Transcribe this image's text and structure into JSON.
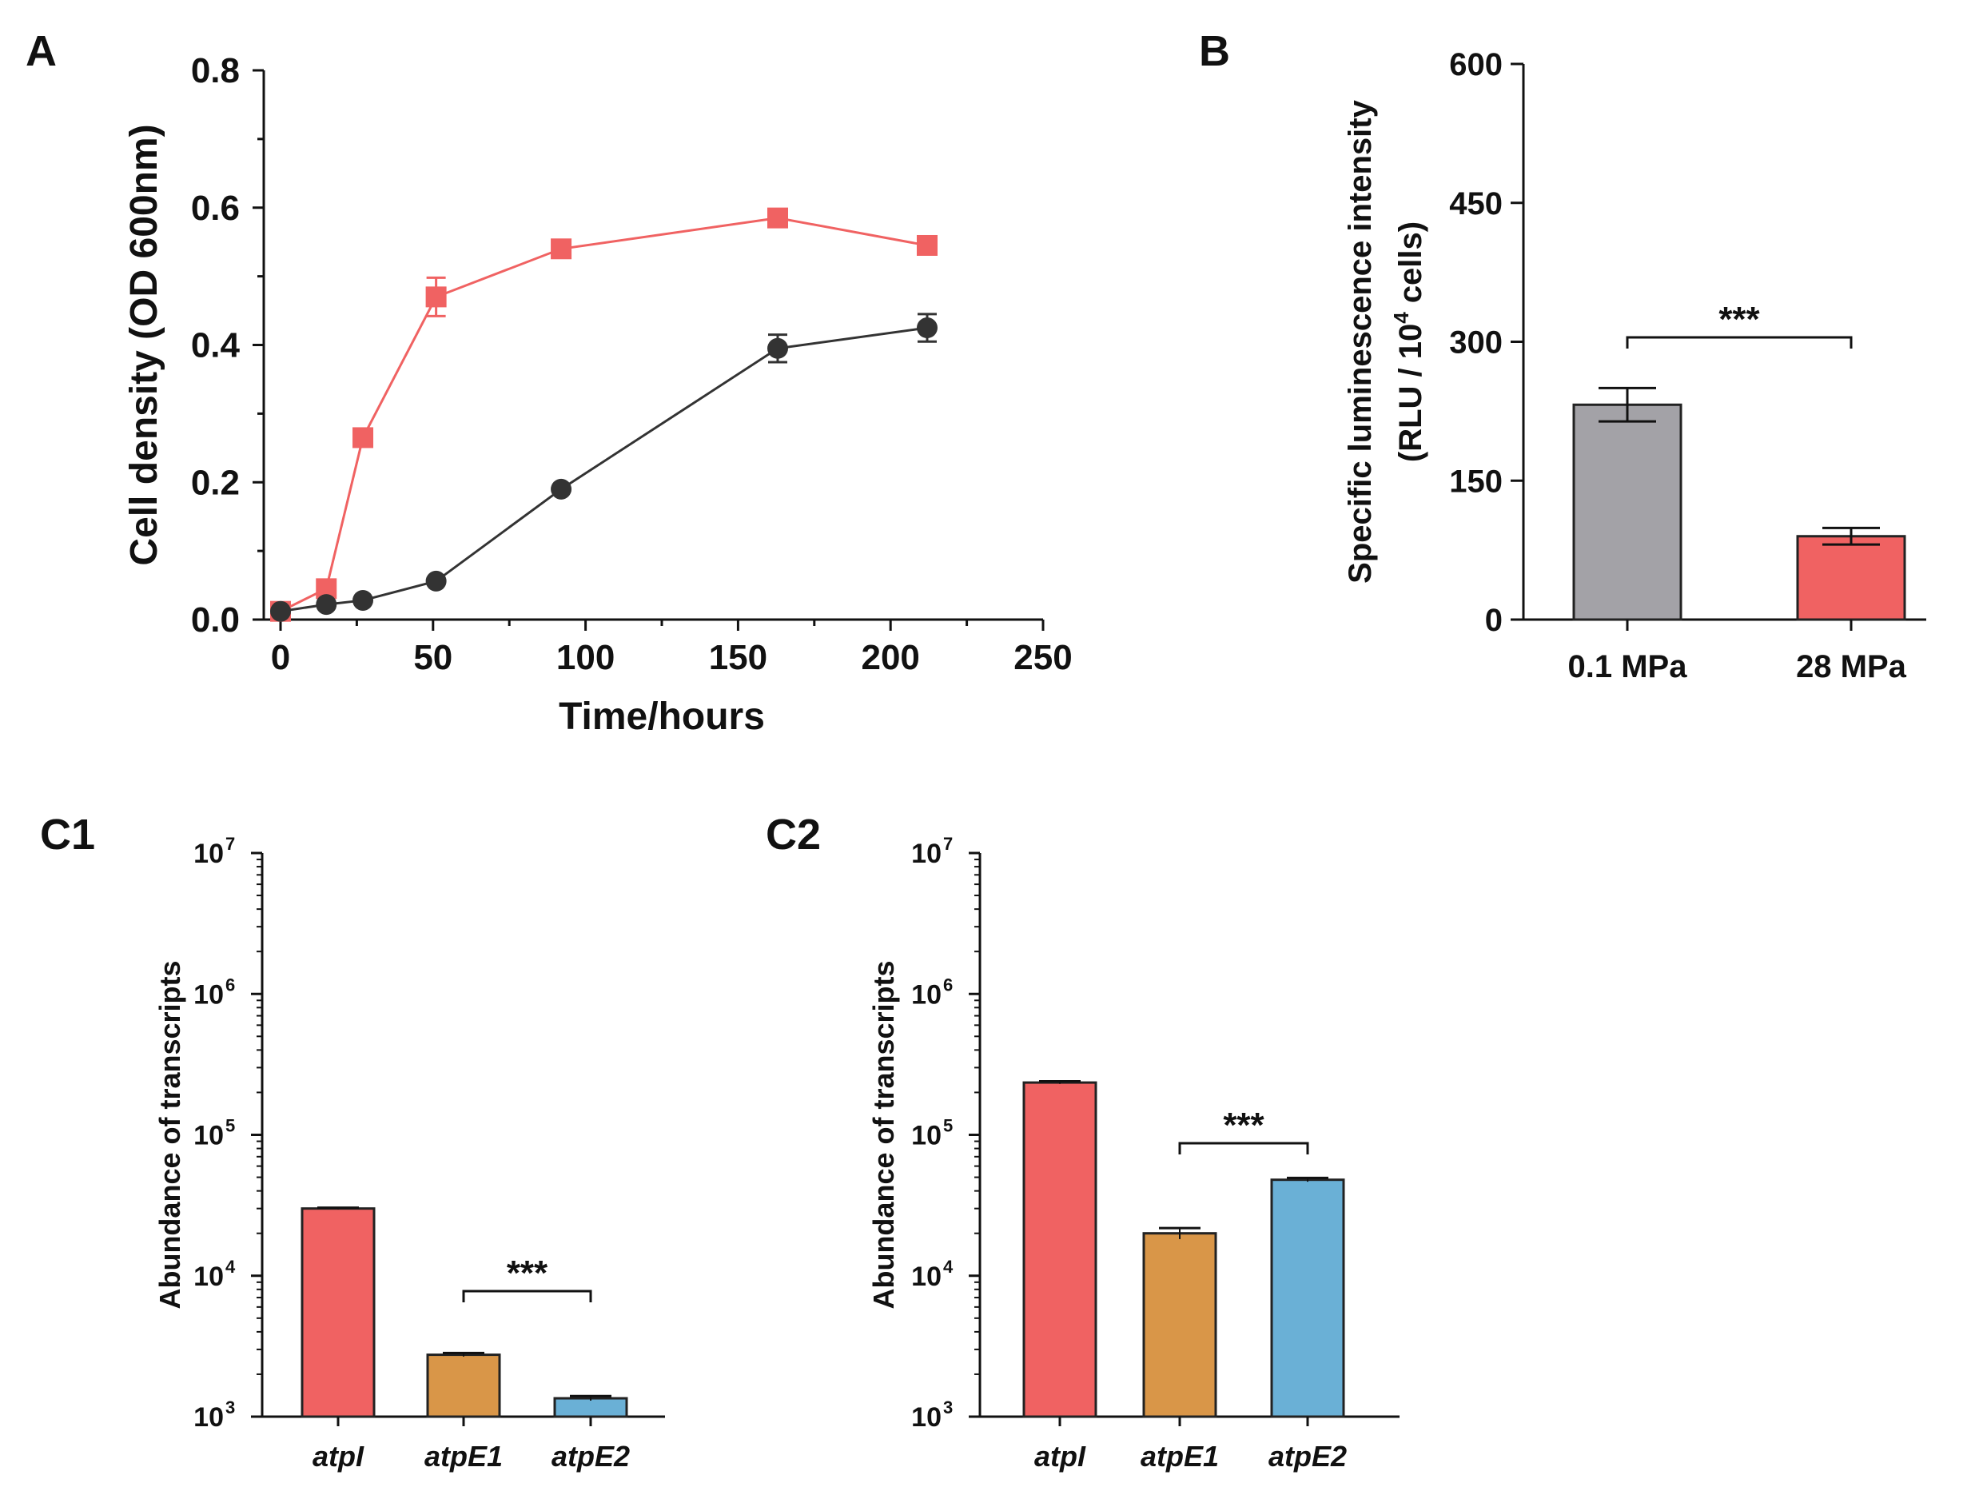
{
  "colors": {
    "red": "#f06262",
    "gray": "#a3a2a7",
    "orange": "#d99648",
    "blue": "#6ab0d6",
    "dark": "#333333"
  },
  "chart_data": [
    {
      "panel": "A",
      "type": "line",
      "xlabel": "Time/hours",
      "ylabel": "Cell density (OD 600nm)",
      "xlim": [
        0,
        250
      ],
      "ylim": [
        0,
        0.8
      ],
      "xticks": [
        "0",
        "50",
        "100",
        "150",
        "200",
        "250"
      ],
      "yticks": [
        "0.0",
        "0.2",
        "0.4",
        "0.6",
        "0.8"
      ],
      "series": [
        {
          "name": "red-squares",
          "marker": "square",
          "color": "#f06262",
          "x": [
            0,
            15,
            27,
            51,
            92,
            163,
            212
          ],
          "y": [
            0.012,
            0.045,
            0.265,
            0.47,
            0.54,
            0.585,
            0.545
          ],
          "err": [
            0.004,
            0.005,
            0.008,
            0.028,
            0.008,
            0.008,
            0.008
          ]
        },
        {
          "name": "black-circles",
          "marker": "circle",
          "color": "#333333",
          "x": [
            0,
            15,
            27,
            51,
            92,
            163,
            212
          ],
          "y": [
            0.012,
            0.022,
            0.028,
            0.056,
            0.19,
            0.395,
            0.425
          ],
          "err": [
            0.004,
            0.004,
            0.004,
            0.005,
            0.006,
            0.02,
            0.02
          ]
        }
      ]
    },
    {
      "panel": "B",
      "type": "bar",
      "ylabel_line1": "Specific luminescence intensity",
      "ylabel_line2_pre": "(RLU / 10",
      "ylabel_line2_sup": "4",
      "ylabel_line2_post": " cells)",
      "ylim": [
        0,
        600
      ],
      "yticks": [
        "0",
        "150",
        "300",
        "450",
        "600"
      ],
      "categories": [
        "0.1 MPa",
        "28 MPa"
      ],
      "values": [
        232,
        90
      ],
      "errors": [
        18,
        9
      ],
      "bar_colors": [
        "#a3a2a7",
        "#f06262"
      ],
      "significance": "***"
    },
    {
      "panel": "C1",
      "type": "bar",
      "scale": "log",
      "ylabel": "Abundance of transcripts",
      "ylim": [
        1000,
        10000000
      ],
      "ytick_base": "10",
      "ytick_exponents": [
        "3",
        "4",
        "5",
        "6",
        "7"
      ],
      "categories": [
        "atpI",
        "atpE1",
        "atpE2"
      ],
      "values": [
        30000,
        2750,
        1350
      ],
      "errors": [
        400,
        80,
        50
      ],
      "bar_colors": [
        "#f06262",
        "#d99648",
        "#6ab0d6"
      ],
      "significance": "***"
    },
    {
      "panel": "C2",
      "type": "bar",
      "scale": "log",
      "ylabel": "Abundance of transcripts",
      "ylim": [
        1000,
        10000000
      ],
      "ytick_base": "10",
      "ytick_exponents": [
        "3",
        "4",
        "5",
        "6",
        "7"
      ],
      "categories": [
        "atpI",
        "atpE1",
        "atpE2"
      ],
      "values": [
        235000,
        20000,
        48000
      ],
      "errors": [
        5000,
        1800,
        1500
      ],
      "bar_colors": [
        "#f06262",
        "#d99648",
        "#6ab0d6"
      ],
      "significance": "***"
    }
  ]
}
